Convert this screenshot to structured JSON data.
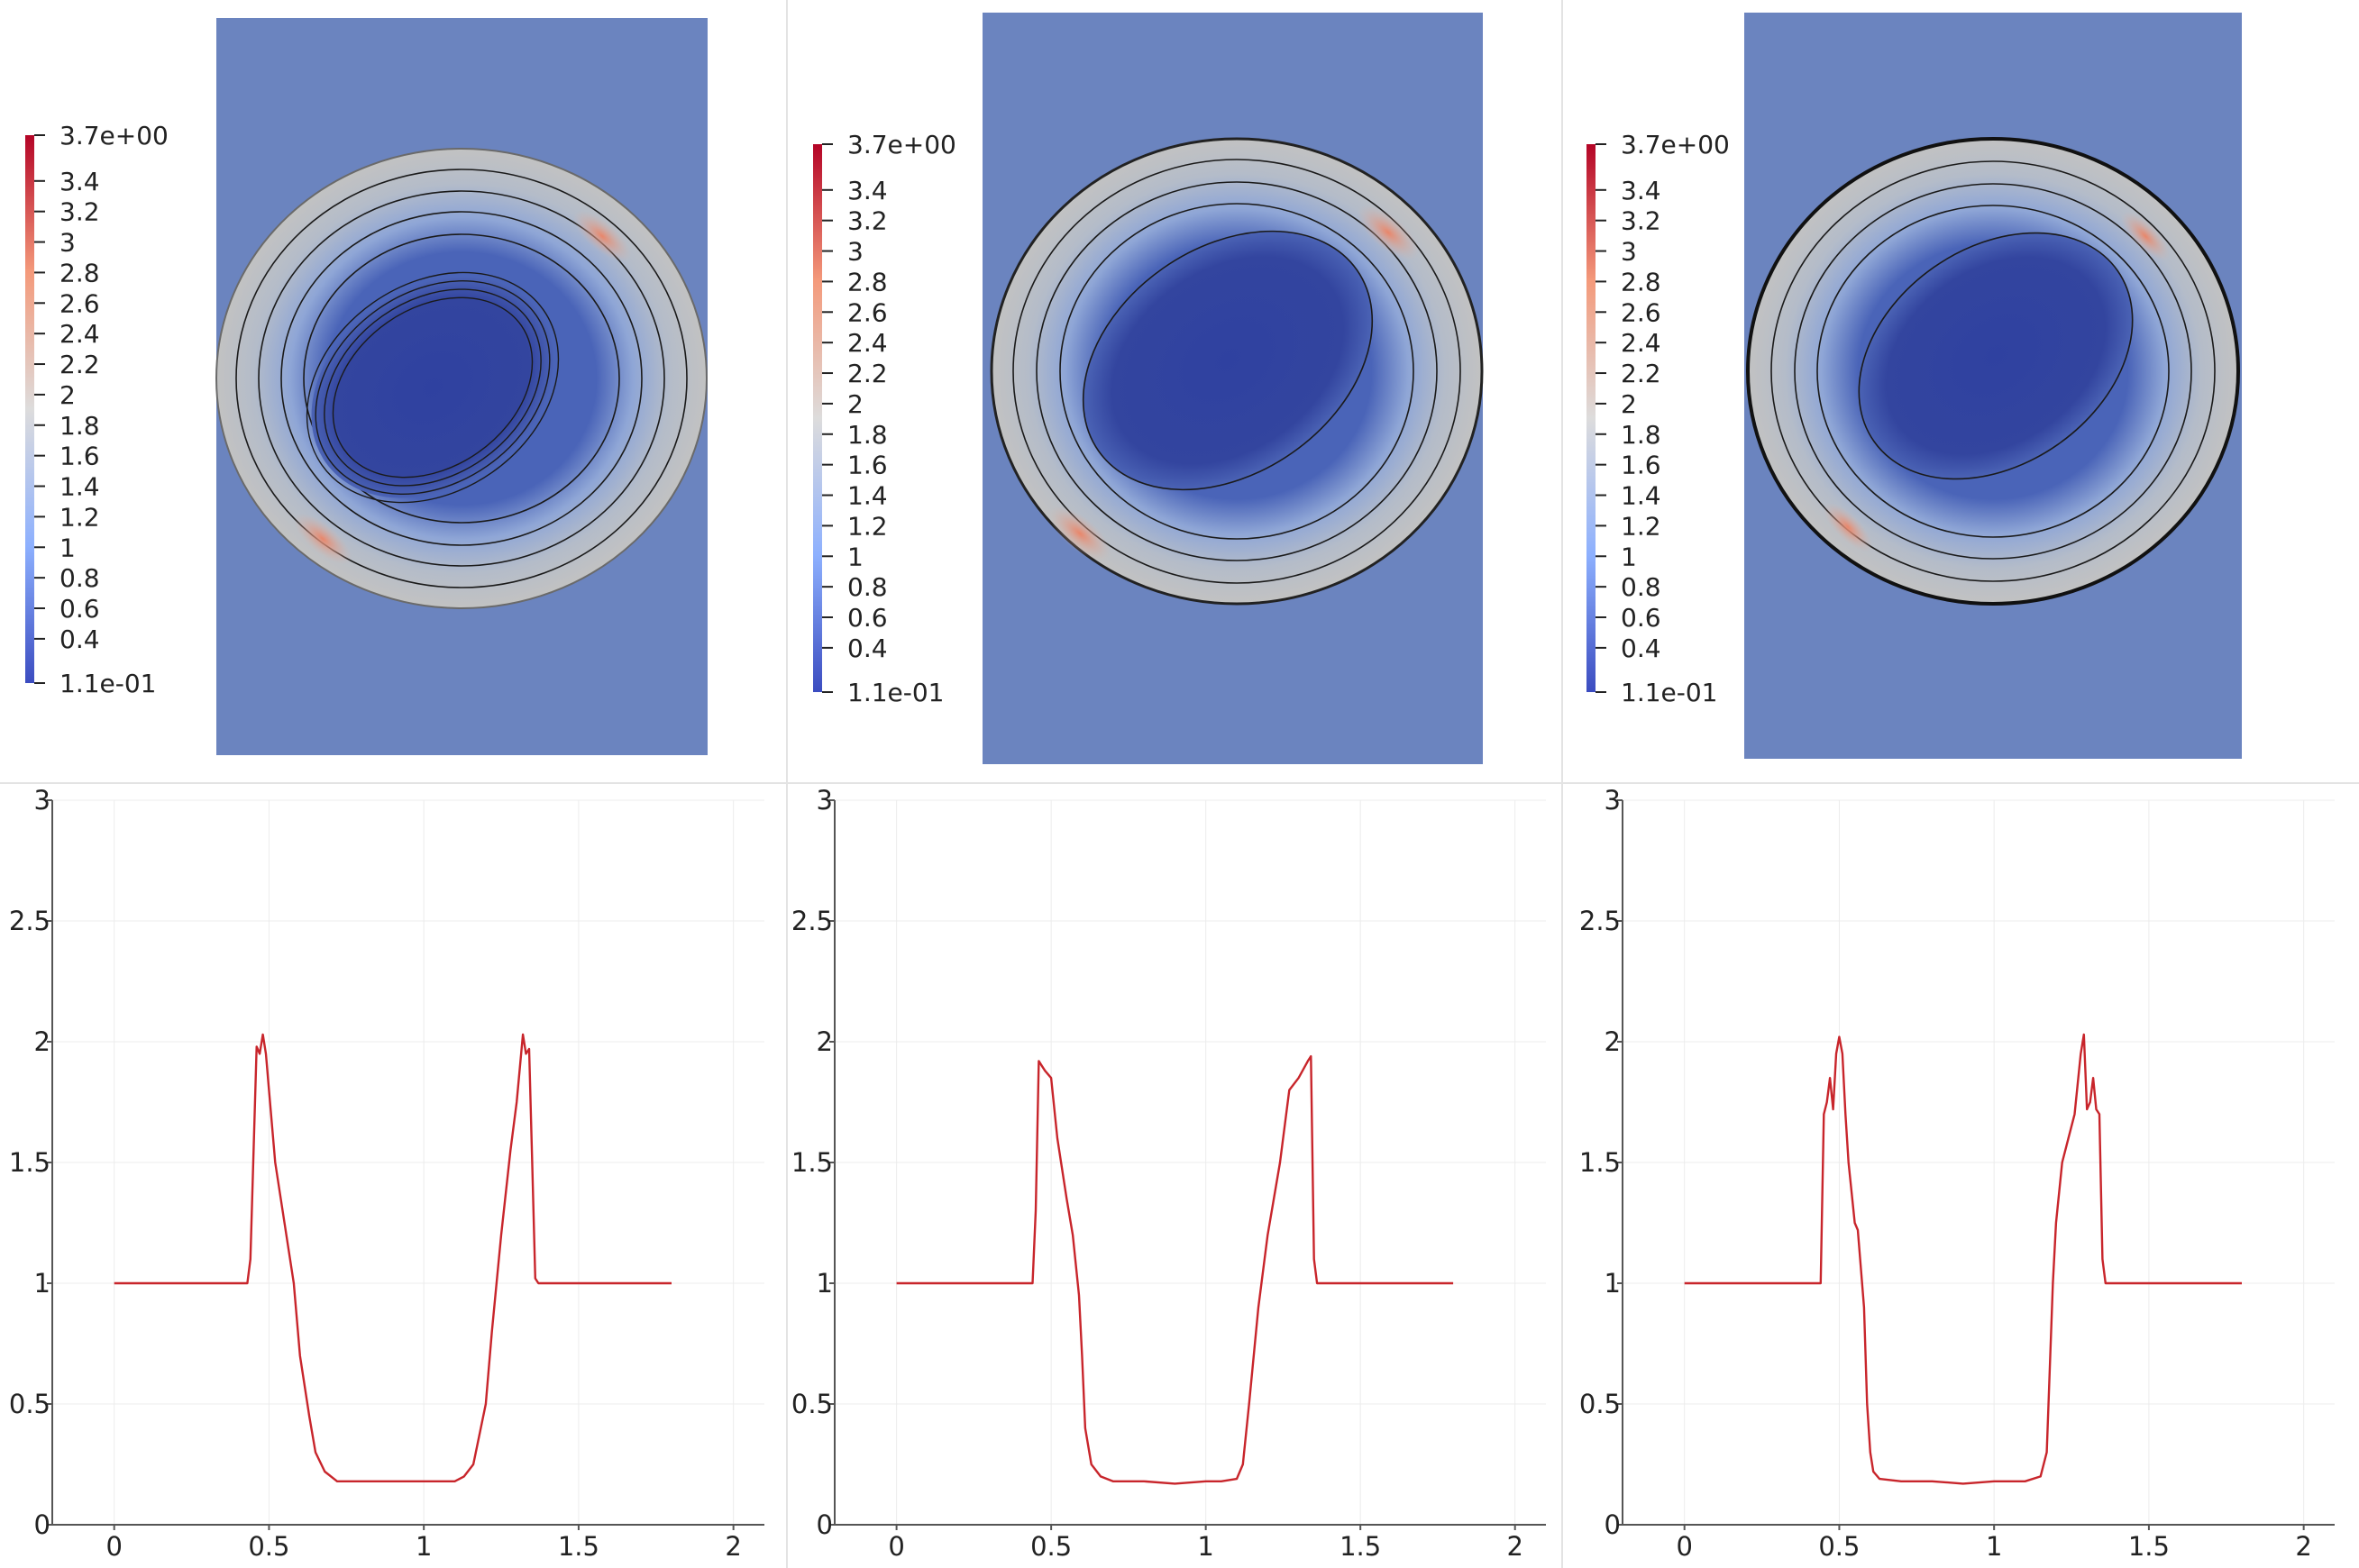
{
  "colors": {
    "background_field": "#6b84bf",
    "curve": "#c8252b",
    "contour": "#1a1a1a",
    "grid": "#ececec",
    "axis": "#555555"
  },
  "colorbar": {
    "max_label": "3.7e+00",
    "min_label": "1.1e-01",
    "ticks": [
      "3.4",
      "3.2",
      "3",
      "2.8",
      "2.6",
      "2.4",
      "2.2",
      "2",
      "1.8",
      "1.6",
      "1.4",
      "1.2",
      "1",
      "0.8",
      "0.6",
      "0.4"
    ]
  },
  "chart_data": [
    {
      "type": "heatmap",
      "panel": "top-left",
      "colorbar_range": [
        0.11,
        3.7
      ],
      "colormap": "coolwarm",
      "contours": true
    },
    {
      "type": "heatmap",
      "panel": "top-middle",
      "colorbar_range": [
        0.11,
        3.7
      ],
      "colormap": "coolwarm",
      "contours": true
    },
    {
      "type": "heatmap",
      "panel": "top-right",
      "colorbar_range": [
        0.11,
        3.7
      ],
      "colormap": "coolwarm",
      "contours": true
    },
    {
      "type": "line",
      "panel": "bottom-left",
      "xlim": [
        -0.2,
        2.1
      ],
      "ylim": [
        0,
        3
      ],
      "xticks": [
        "0",
        "0.5",
        "1",
        "1.5",
        "2"
      ],
      "yticks": [
        "0",
        "0.5",
        "1",
        "1.5",
        "2",
        "2.5",
        "3"
      ],
      "grid": true,
      "series": [
        {
          "x": [
            0,
            0.3,
            0.43,
            0.44,
            0.46,
            0.47,
            0.48,
            0.49,
            0.5,
            0.52,
            0.55,
            0.58,
            0.6,
            0.63,
            0.65,
            0.68,
            0.72,
            0.8,
            0.9,
            1.0,
            1.1,
            1.13,
            1.16,
            1.2,
            1.22,
            1.25,
            1.28,
            1.3,
            1.32,
            1.33,
            1.34,
            1.35,
            1.36,
            1.37,
            1.4,
            1.5,
            1.8
          ],
          "y": [
            1,
            1,
            1,
            1.1,
            1.98,
            1.95,
            2.03,
            1.95,
            1.8,
            1.5,
            1.25,
            1.0,
            0.7,
            0.45,
            0.3,
            0.22,
            0.18,
            0.18,
            0.18,
            0.18,
            0.18,
            0.2,
            0.25,
            0.5,
            0.8,
            1.2,
            1.55,
            1.75,
            2.03,
            1.95,
            1.97,
            1.5,
            1.02,
            1,
            1,
            1,
            1
          ]
        }
      ]
    },
    {
      "type": "line",
      "panel": "bottom-middle",
      "xlim": [
        -0.2,
        2.1
      ],
      "ylim": [
        0,
        3
      ],
      "xticks": [
        "0",
        "0.5",
        "1",
        "1.5",
        "2"
      ],
      "yticks": [
        "0",
        "0.5",
        "1",
        "1.5",
        "2",
        "2.5",
        "3"
      ],
      "grid": true,
      "series": [
        {
          "x": [
            0,
            0.3,
            0.44,
            0.45,
            0.46,
            0.47,
            0.48,
            0.5,
            0.52,
            0.55,
            0.57,
            0.59,
            0.6,
            0.61,
            0.63,
            0.66,
            0.7,
            0.8,
            0.9,
            1.0,
            1.05,
            1.1,
            1.12,
            1.14,
            1.17,
            1.2,
            1.24,
            1.27,
            1.3,
            1.33,
            1.34,
            1.35,
            1.36,
            1.37,
            1.4,
            1.5,
            1.8
          ],
          "y": [
            1,
            1,
            1,
            1.3,
            1.92,
            1.9,
            1.88,
            1.85,
            1.6,
            1.35,
            1.2,
            0.95,
            0.7,
            0.4,
            0.25,
            0.2,
            0.18,
            0.18,
            0.17,
            0.18,
            0.18,
            0.19,
            0.25,
            0.5,
            0.9,
            1.2,
            1.5,
            1.8,
            1.85,
            1.92,
            1.94,
            1.1,
            1.0,
            1,
            1,
            1,
            1
          ]
        }
      ]
    },
    {
      "type": "line",
      "panel": "bottom-right",
      "xlim": [
        -0.2,
        2.1
      ],
      "ylim": [
        0,
        3
      ],
      "xticks": [
        "0",
        "0.5",
        "1",
        "1.5",
        "2"
      ],
      "yticks": [
        "0",
        "0.5",
        "1",
        "1.5",
        "2",
        "2.5",
        "3"
      ],
      "grid": true,
      "series": [
        {
          "x": [
            0,
            0.3,
            0.44,
            0.45,
            0.46,
            0.47,
            0.48,
            0.49,
            0.5,
            0.51,
            0.52,
            0.53,
            0.55,
            0.56,
            0.58,
            0.59,
            0.6,
            0.61,
            0.63,
            0.7,
            0.8,
            0.9,
            1.0,
            1.1,
            1.15,
            1.17,
            1.19,
            1.2,
            1.22,
            1.24,
            1.26,
            1.28,
            1.29,
            1.3,
            1.31,
            1.32,
            1.33,
            1.34,
            1.35,
            1.36,
            1.4,
            1.5,
            1.8
          ],
          "y": [
            1,
            1,
            1,
            1.7,
            1.75,
            1.85,
            1.72,
            1.95,
            2.02,
            1.95,
            1.7,
            1.5,
            1.25,
            1.22,
            0.9,
            0.5,
            0.3,
            0.22,
            0.19,
            0.18,
            0.18,
            0.17,
            0.18,
            0.18,
            0.2,
            0.3,
            1.0,
            1.25,
            1.5,
            1.6,
            1.7,
            1.95,
            2.03,
            1.72,
            1.75,
            1.85,
            1.72,
            1.7,
            1.1,
            1.0,
            1,
            1,
            1
          ]
        }
      ]
    }
  ]
}
